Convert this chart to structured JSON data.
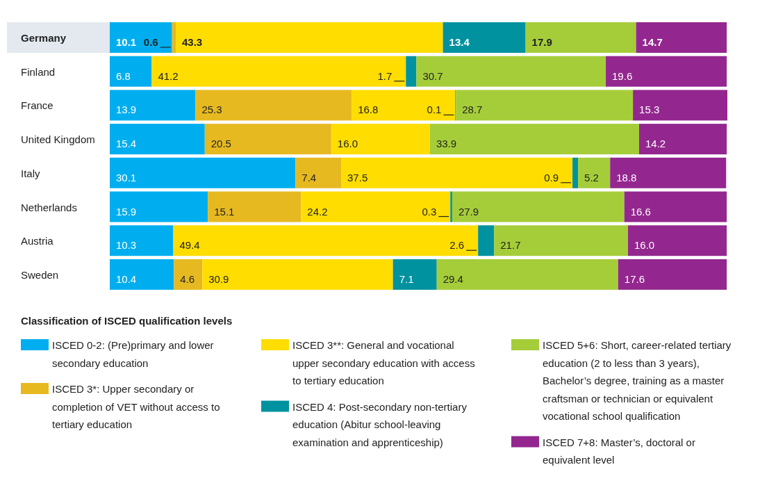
{
  "chart_data": {
    "type": "bar",
    "orientation": "horizontal",
    "stacked": true,
    "legend": "bottom",
    "legend_title": "Classification of ISCED qualification levels",
    "data_labels": true,
    "categories": [
      "Germany",
      "Finland",
      "France",
      "United Kingdom",
      "Italy",
      "Netherlands",
      "Austria",
      "Sweden"
    ],
    "series": [
      {
        "name": "ISCED 0-2: (Pre)primary and lower secondary education",
        "color": "#00aeef",
        "values": [
          10.1,
          6.8,
          13.9,
          15.4,
          30.1,
          15.9,
          10.3,
          10.4
        ],
        "value_labels": [
          "10.1",
          "6.8",
          "13.9",
          "15.4",
          "30.1",
          "15.9",
          "10.3",
          "10.4"
        ]
      },
      {
        "name": "ISCED 3*: Upper secondary or completion of VET without access to tertiary education",
        "color": "#e6b921",
        "values": [
          0.6,
          null,
          25.3,
          20.5,
          7.4,
          15.1,
          null,
          4.6
        ],
        "value_labels": [
          "0.6",
          null,
          "25.3",
          "20.5",
          "7.4",
          "15.1",
          null,
          "4.6"
        ]
      },
      {
        "name": "ISCED 3**: General and vocational upper secondary education with access to tertiary education",
        "color": "#ffdd00",
        "values": [
          43.3,
          41.2,
          16.8,
          16.0,
          37.5,
          24.2,
          49.4,
          30.9
        ],
        "value_labels": [
          "43.3",
          "41.2",
          "16.8",
          "16.0",
          "37.5",
          "24.2",
          "49.4",
          "30.9"
        ]
      },
      {
        "name": "ISCED 4:  Post-secondary non-tertiary education (Abitur school-leaving examination and apprenticeship)",
        "color": "#00929f",
        "values": [
          13.4,
          1.7,
          0.1,
          null,
          0.9,
          0.3,
          2.6,
          7.1
        ],
        "value_labels": [
          "13.4",
          "1.7",
          "0.1",
          null,
          "0.9",
          "0.3",
          "2.6",
          "7.1"
        ]
      },
      {
        "name": "ISCED 5+6: Short, career-related tertiary education (2 to less than 3 years), Bachelor’s degree, training as a master craftsman or technician or equivalent vocational school qualification",
        "color": "#a5cd39",
        "values": [
          17.9,
          30.7,
          28.7,
          33.9,
          5.2,
          27.9,
          21.7,
          29.4
        ],
        "value_labels": [
          "17.9",
          "30.7",
          "28.7",
          "33.9",
          "5.2",
          "27.9",
          "21.7",
          "29.4"
        ]
      },
      {
        "name": "ISCED 7+8: Master’s, doctoral or equivalent level",
        "color": "#93278f",
        "values": [
          14.7,
          19.6,
          15.3,
          14.2,
          18.8,
          16.6,
          16.0,
          17.6
        ],
        "value_labels": [
          "14.7",
          "19.6",
          "15.3",
          "14.2",
          "18.8",
          "16.6",
          "16.0",
          "17.6"
        ]
      }
    ]
  }
}
